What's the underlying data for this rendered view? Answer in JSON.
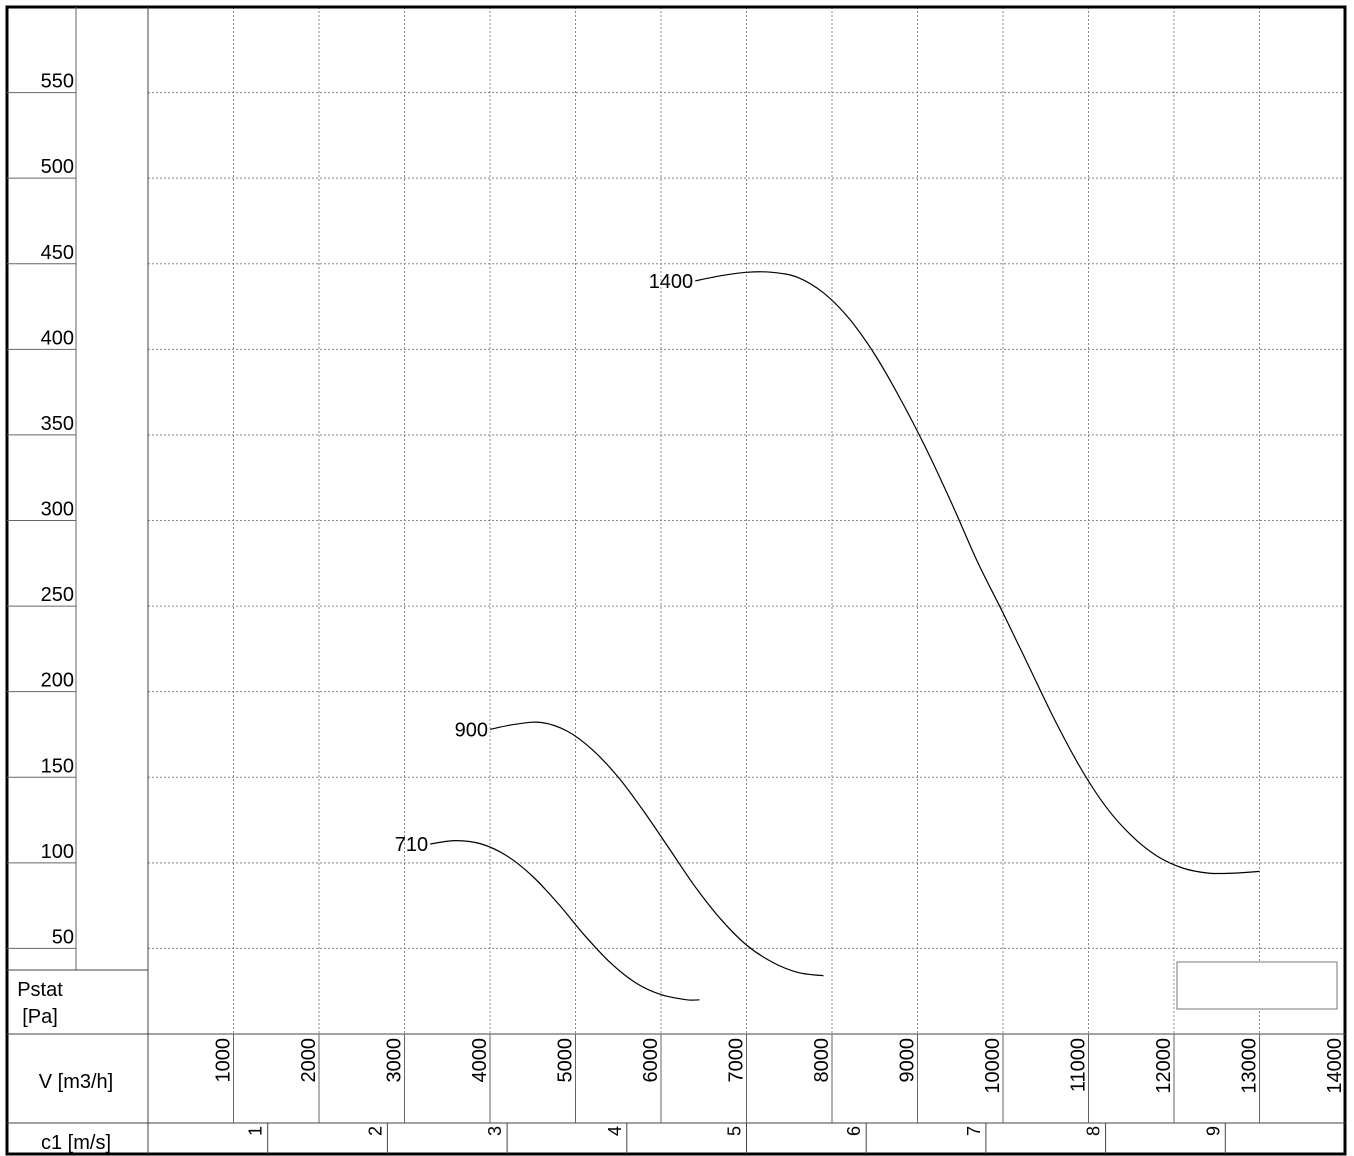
{
  "chart_data": {
    "type": "line",
    "title": "",
    "ylabel": "Pstat\n[Pa]",
    "xlabel": "V [m3/h]",
    "x2label": "c1 [m/s]",
    "xlim": [
      0,
      14000
    ],
    "ylim": [
      0,
      600
    ],
    "yticks": [
      50,
      100,
      150,
      200,
      250,
      300,
      350,
      400,
      450,
      500,
      550
    ],
    "xticks": [
      1000,
      2000,
      3000,
      4000,
      5000,
      6000,
      7000,
      8000,
      9000,
      10000,
      11000,
      12000,
      13000,
      14000
    ],
    "x2ticks": [
      {
        "label": "1",
        "v": 1.4
      },
      {
        "label": "2",
        "v": 2.8
      },
      {
        "label": "3",
        "v": 4.2
      },
      {
        "label": "4",
        "v": 5.6
      },
      {
        "label": "5",
        "v": 7.0
      },
      {
        "label": "6",
        "v": 8.4
      },
      {
        "label": "7",
        "v": 9.8
      },
      {
        "label": "8",
        "v": 11.2
      },
      {
        "label": "9",
        "v": 12.6
      }
    ],
    "grid": true,
    "legend": "none",
    "series": [
      {
        "name": "710",
        "x": [
          3300,
          3600,
          3900,
          4200,
          4500,
          4800,
          5100,
          5400,
          5700,
          6000,
          6300,
          6450
        ],
        "y": [
          111,
          113,
          111,
          104,
          92,
          76,
          58,
          42,
          30,
          23,
          20,
          20
        ]
      },
      {
        "name": "900",
        "x": [
          4000,
          4300,
          4600,
          4900,
          5200,
          5500,
          5800,
          6100,
          6400,
          6700,
          7000,
          7300,
          7600,
          7900
        ],
        "y": [
          178,
          181,
          182,
          177,
          166,
          150,
          130,
          108,
          86,
          67,
          52,
          42,
          36,
          34
        ]
      },
      {
        "name": "1400",
        "x": [
          6400,
          6700,
          7000,
          7300,
          7600,
          7900,
          8200,
          8500,
          8800,
          9100,
          9400,
          9700,
          10000,
          10300,
          10600,
          10900,
          11200,
          11500,
          11800,
          12100,
          12400,
          12700,
          13000
        ],
        "y": [
          440,
          443,
          445,
          445,
          442,
          433,
          418,
          397,
          371,
          342,
          310,
          276,
          246,
          215,
          184,
          156,
          133,
          116,
          104,
          97,
          94,
          94,
          95
        ]
      }
    ]
  }
}
